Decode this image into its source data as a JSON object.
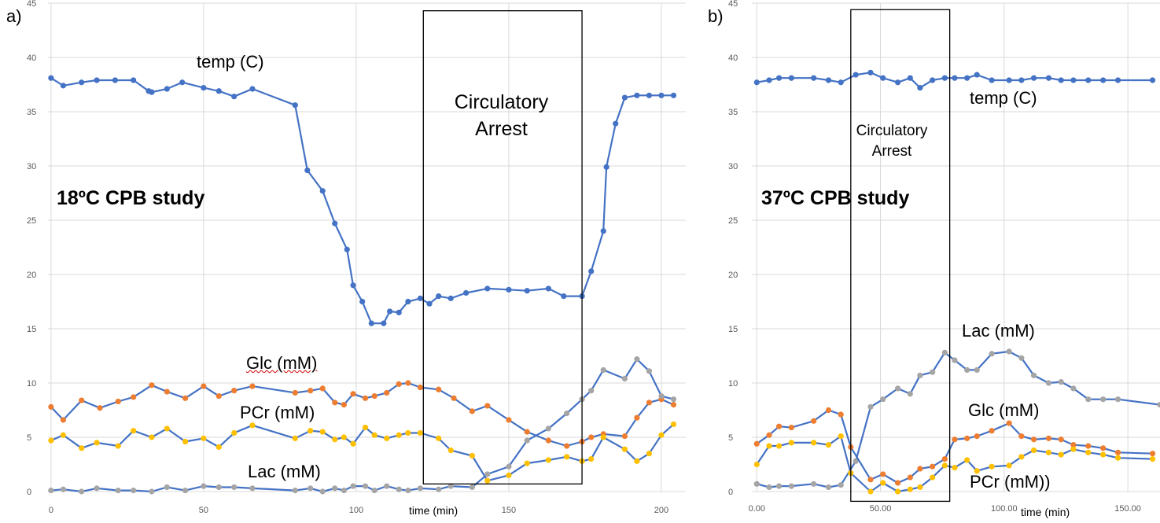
{
  "colors": {
    "temp": "#4472C4",
    "glc": "#ED7D31",
    "pcr": "#FFC000",
    "lac": "#A5A5A5",
    "grid": "#D9D9D9",
    "box": "#000000"
  },
  "chart_data": [
    {
      "type": "line",
      "panel_label": "a)",
      "study_title": "18ºC CPB study",
      "xlabel": "time (min)",
      "xlim": [
        -1,
        208
      ],
      "ylim": [
        0,
        45
      ],
      "x_ticks": [
        0,
        50,
        100,
        150,
        200
      ],
      "x_tick_labels": [
        "0",
        "50",
        "100",
        "150",
        "200"
      ],
      "y_ticks": [
        0,
        5,
        10,
        15,
        20,
        25,
        30,
        35,
        40,
        45
      ],
      "y_tick_labels": [
        "0",
        "5",
        "10",
        "15",
        "20",
        "25",
        "30",
        "35",
        "40",
        "45"
      ],
      "arrest": {
        "label_line1": "Circulatory",
        "label_line2": "Arrest",
        "x_start": 122,
        "x_end": 174,
        "y_bottom": 0.7,
        "y_top": 44.3
      },
      "series": [
        {
          "name": "temp (C)",
          "key": "temp",
          "x": [
            0,
            4,
            10,
            15,
            21,
            27,
            32,
            33,
            38,
            43,
            50,
            55,
            60,
            66,
            80,
            84,
            89,
            93,
            97,
            99,
            102,
            105,
            109,
            111,
            114,
            117,
            121,
            124,
            127,
            131,
            136,
            143,
            150,
            156,
            163,
            168,
            174,
            177,
            181,
            182,
            185,
            188,
            192,
            196,
            200,
            204
          ],
          "y": [
            38.1,
            37.4,
            37.7,
            37.9,
            37.9,
            37.9,
            36.9,
            36.8,
            37.1,
            37.7,
            37.2,
            36.9,
            36.4,
            37.1,
            35.6,
            29.6,
            27.7,
            24.7,
            22.3,
            19.0,
            17.5,
            15.5,
            15.5,
            16.6,
            16.5,
            17.5,
            17.8,
            17.3,
            18.0,
            17.8,
            18.3,
            18.7,
            18.6,
            18.5,
            18.7,
            18.0,
            18.0,
            20.3,
            24.0,
            29.9,
            33.9,
            36.3,
            36.5,
            36.5,
            36.5,
            36.5
          ]
        },
        {
          "name": "Glc (mM)",
          "key": "glc",
          "x": [
            0,
            4,
            10,
            16,
            22,
            27,
            33,
            38,
            44,
            50,
            55,
            60,
            66,
            80,
            85,
            89,
            93,
            96,
            99,
            103,
            106,
            110,
            114,
            117,
            121,
            127,
            132,
            138,
            143,
            150,
            156,
            163,
            169,
            174,
            177,
            181,
            188,
            192,
            196,
            200,
            204
          ],
          "y": [
            7.8,
            6.6,
            8.4,
            7.7,
            8.3,
            8.7,
            9.8,
            9.2,
            8.6,
            9.7,
            8.8,
            9.3,
            9.7,
            9.1,
            9.3,
            9.5,
            8.2,
            8.0,
            9.0,
            8.6,
            8.8,
            9.1,
            9.9,
            10.0,
            9.6,
            9.4,
            8.6,
            7.4,
            7.9,
            6.6,
            5.5,
            4.7,
            4.2,
            4.6,
            5.0,
            5.3,
            5.1,
            6.8,
            8.2,
            8.5,
            8.0
          ]
        },
        {
          "name": "PCr (mM)",
          "key": "pcr",
          "x": [
            0,
            4,
            10,
            15,
            22,
            27,
            33,
            38,
            44,
            50,
            55,
            60,
            66,
            80,
            85,
            89,
            93,
            96,
            99,
            103,
            106,
            110,
            114,
            117,
            121,
            127,
            131,
            138,
            143,
            150,
            156,
            163,
            169,
            174,
            177,
            181,
            188,
            192,
            196,
            200,
            204
          ],
          "y": [
            4.7,
            5.2,
            4.0,
            4.5,
            4.2,
            5.6,
            5.0,
            5.8,
            4.6,
            4.9,
            4.1,
            5.4,
            6.1,
            4.9,
            5.6,
            5.5,
            4.8,
            5.0,
            4.4,
            5.9,
            5.2,
            4.9,
            5.2,
            5.4,
            5.4,
            4.9,
            3.8,
            3.3,
            1.0,
            1.5,
            2.6,
            2.9,
            3.2,
            2.8,
            3.0,
            5.0,
            3.9,
            2.8,
            3.5,
            5.2,
            6.2
          ]
        },
        {
          "name": "Lac (mM)",
          "key": "lac",
          "x": [
            0,
            4,
            10,
            15,
            22,
            27,
            33,
            38,
            44,
            50,
            55,
            60,
            66,
            80,
            85,
            89,
            93,
            96,
            99,
            103,
            106,
            110,
            114,
            117,
            121,
            127,
            131,
            138,
            143,
            150,
            156,
            163,
            169,
            174,
            177,
            181,
            188,
            192,
            196,
            200,
            204
          ],
          "y": [
            0.1,
            0.2,
            0.0,
            0.3,
            0.1,
            0.1,
            0.0,
            0.4,
            0.1,
            0.5,
            0.4,
            0.4,
            0.3,
            0.1,
            0.3,
            0.0,
            0.3,
            0.1,
            0.5,
            0.5,
            0.1,
            0.5,
            0.2,
            0.1,
            0.3,
            0.2,
            0.5,
            0.4,
            1.6,
            2.3,
            4.7,
            5.8,
            7.2,
            8.5,
            9.3,
            11.2,
            10.4,
            12.2,
            11.1,
            8.8,
            8.5
          ]
        }
      ]
    },
    {
      "type": "line",
      "panel_label": "b)",
      "study_title": "37ºC CPB study",
      "xlabel": "time (min)",
      "xlim": [
        -2,
        163
      ],
      "ylim": [
        0,
        45
      ],
      "x_ticks": [
        0,
        50,
        100,
        150
      ],
      "x_tick_labels": [
        "0.00",
        "50.00",
        "100.00",
        "150.00"
      ],
      "y_ticks": [
        0,
        5,
        10,
        15,
        20,
        25,
        30,
        35,
        40,
        45
      ],
      "y_tick_labels": [
        "0",
        "5",
        "10",
        "15",
        "20",
        "25",
        "30",
        "35",
        "40",
        "45"
      ],
      "arrest": {
        "label_line1": "Circulatory",
        "label_line2": "Arrest",
        "x_start": 38,
        "x_end": 78,
        "y_bottom": -0.9,
        "y_top": 44.4
      },
      "series": [
        {
          "name": "temp (C)",
          "key": "temp",
          "x": [
            0,
            5,
            9,
            14,
            23,
            29,
            34,
            40,
            46,
            51,
            57,
            62,
            66,
            71,
            76,
            80,
            85,
            89,
            95,
            102,
            107,
            112,
            118,
            123,
            128,
            134,
            140,
            146,
            160
          ],
          "y": [
            37.7,
            37.9,
            38.1,
            38.1,
            38.1,
            37.9,
            37.7,
            38.4,
            38.6,
            38.1,
            37.7,
            38.1,
            37.2,
            37.9,
            38.1,
            38.1,
            38.1,
            38.4,
            37.9,
            37.9,
            37.9,
            38.1,
            38.1,
            37.9,
            37.9,
            37.9,
            37.9,
            37.9,
            37.9
          ]
        },
        {
          "name": "Lac (mM)",
          "key": "lac",
          "x": [
            0,
            5,
            9,
            14,
            23,
            29,
            34,
            40,
            46,
            51,
            57,
            62,
            66,
            71,
            76,
            80,
            85,
            89,
            95,
            102,
            107,
            112,
            118,
            123,
            128,
            134,
            140,
            146,
            163
          ],
          "y": [
            0.7,
            0.4,
            0.5,
            0.5,
            0.7,
            0.4,
            0.6,
            2.8,
            7.8,
            8.5,
            9.5,
            9.0,
            10.7,
            11.0,
            12.8,
            12.1,
            11.2,
            11.2,
            12.7,
            12.9,
            12.3,
            10.7,
            10.0,
            10.1,
            9.5,
            8.5,
            8.5,
            8.5,
            8.0
          ]
        },
        {
          "name": "Glc (mM)",
          "key": "glc",
          "x": [
            0,
            5,
            9,
            14,
            23,
            29,
            34,
            38,
            46,
            51,
            57,
            62,
            66,
            71,
            76,
            80,
            85,
            89,
            95,
            102,
            107,
            112,
            118,
            123,
            128,
            134,
            140,
            146,
            160
          ],
          "y": [
            4.4,
            5.2,
            6.0,
            5.9,
            6.5,
            7.5,
            7.1,
            4.1,
            1.1,
            1.6,
            0.8,
            1.3,
            2.1,
            2.3,
            3.0,
            4.8,
            4.9,
            5.1,
            5.6,
            6.3,
            5.1,
            4.8,
            4.9,
            4.8,
            4.3,
            4.2,
            4.0,
            3.6,
            3.5
          ]
        },
        {
          "name": "PCr (mM))",
          "key": "pcr",
          "x": [
            0,
            5,
            9,
            14,
            23,
            29,
            34,
            38,
            46,
            51,
            57,
            62,
            66,
            71,
            76,
            80,
            85,
            89,
            95,
            102,
            107,
            112,
            118,
            123,
            128,
            134,
            140,
            146,
            160
          ],
          "y": [
            2.5,
            4.2,
            4.2,
            4.5,
            4.5,
            4.3,
            5.1,
            1.7,
            0.0,
            0.8,
            0.0,
            0.2,
            0.4,
            1.3,
            2.4,
            2.2,
            2.9,
            1.9,
            2.3,
            2.4,
            3.2,
            3.8,
            3.6,
            3.4,
            3.9,
            3.6,
            3.4,
            3.1,
            3.0
          ]
        }
      ]
    }
  ]
}
